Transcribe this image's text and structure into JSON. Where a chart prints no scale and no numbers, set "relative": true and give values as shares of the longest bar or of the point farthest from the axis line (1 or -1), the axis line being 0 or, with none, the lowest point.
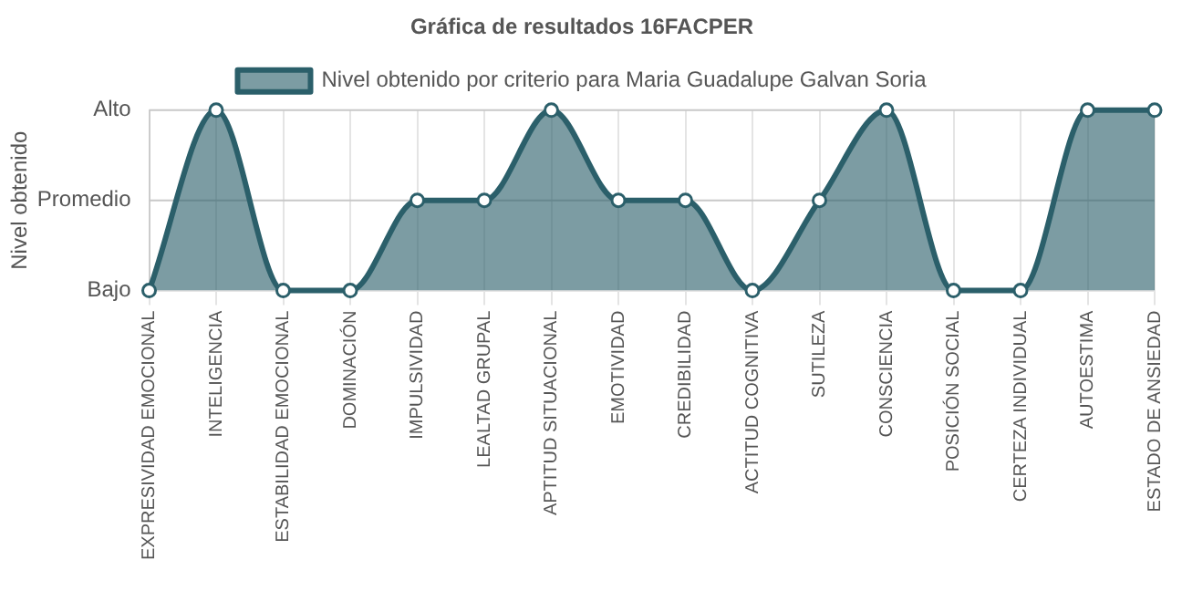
{
  "chart_data": {
    "type": "area",
    "title": "Gráfica de resultados 16FACPER",
    "ylabel": "Nivel obtenido",
    "categories": [
      "EXPRESIVIDAD EMOCIONAL",
      "INTELIGENCIA",
      "ESTABILIDAD EMOCIONAL",
      "DOMINACIÓN",
      "IMPULSIVIDAD",
      "LEALTAD GRUPAL",
      "APTITUD SITUACIONAL",
      "EMOTIVIDAD",
      "CREDIBILIDAD",
      "ACTITUD COGNITIVA",
      "SUTILEZA",
      "CONSCIENCIA",
      "POSICIÓN SOCIAL",
      "CERTEZA INDIVIDUAL",
      "AUTOESTIMA",
      "ESTADO DE ANSIEDAD"
    ],
    "series": [
      {
        "name": "Nivel obtenido por criterio para Maria Guadalupe Galvan Soria",
        "color": "#2b5f6a",
        "values": [
          0,
          1,
          0,
          0,
          0.5,
          0.5,
          1,
          0.5,
          0.5,
          0,
          0.5,
          1,
          0,
          0,
          1,
          1
        ]
      }
    ],
    "relative": true,
    "y_categories": [
      "Alto",
      "Promedio",
      "Bajo"
    ],
    "grid": "x",
    "ref_lines": [
      {
        "axis": "y",
        "value": 1,
        "color": "#c8c8c8"
      },
      {
        "axis": "y",
        "value": 0.5,
        "color": "#c8c8c8"
      }
    ],
    "legend": "top",
    "marker": "circle",
    "line_style": "solid"
  }
}
